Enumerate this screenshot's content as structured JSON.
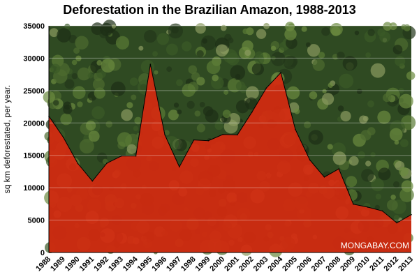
{
  "chart_data": {
    "type": "area",
    "title": "Deforestation in the Brazilian Amazon, 1988-2013",
    "ylabel": "sq km deforestated, per year.",
    "xlabel": "",
    "ylim": [
      0,
      35000
    ],
    "yticks": [
      0,
      5000,
      10000,
      15000,
      20000,
      25000,
      30000,
      35000
    ],
    "grid": true,
    "categories": [
      "1988",
      "1989",
      "1990",
      "1991",
      "1992",
      "1993",
      "1994",
      "1995",
      "1996",
      "1997",
      "1998",
      "1999",
      "2000",
      "2001",
      "2002",
      "2003",
      "2004",
      "2005",
      "2006",
      "2007",
      "2008",
      "2009",
      "2010",
      "2011",
      "2012",
      "2013"
    ],
    "values": [
      21050,
      17770,
      13730,
      11030,
      13786,
      14896,
      14896,
      29059,
      18161,
      13227,
      17383,
      17259,
      18226,
      18165,
      21651,
      25396,
      27772,
      19014,
      14286,
      11651,
      12911,
      7464,
      7000,
      6418,
      4571,
      5843
    ],
    "fill_color": "#d42a10",
    "background": "forest photo",
    "watermark": "MONGABAY.COM"
  }
}
